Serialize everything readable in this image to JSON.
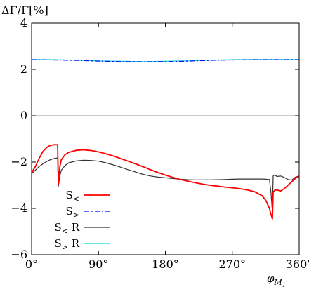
{
  "chart_data": {
    "type": "line",
    "ylabel": "ΔΓ/Γ[%]",
    "xlabel": "φ_{M1}",
    "xlabel_main": "φ",
    "xlabel_sub": "M",
    "xlabel_subsub": "1",
    "xlim": [
      0,
      360
    ],
    "ylim": [
      -6,
      4
    ],
    "x_ticks": [
      0,
      90,
      180,
      270,
      360
    ],
    "x_tick_labels": [
      "0°",
      "90°",
      "180°",
      "270°",
      "360°"
    ],
    "y_ticks": [
      -6,
      -4,
      -2,
      0,
      2,
      4
    ],
    "y_tick_labels": [
      "−6",
      "−4",
      "−2",
      "0",
      "2",
      "4"
    ],
    "zero_line": 0,
    "legend_position": "lower-left",
    "series": [
      {
        "name": "S< ",
        "name_base": "S",
        "name_sub": "<",
        "color": "#ff0000",
        "dash": "solid",
        "x": [
          0,
          5,
          10,
          15,
          20,
          25,
          30,
          35,
          36,
          38,
          40,
          45,
          50,
          60,
          70,
          80,
          90,
          100,
          110,
          120,
          130,
          140,
          150,
          160,
          170,
          180,
          190,
          200,
          210,
          220,
          230,
          240,
          250,
          260,
          270,
          280,
          290,
          300,
          310,
          315,
          320,
          322,
          324,
          325,
          327,
          330,
          335,
          340,
          345,
          350,
          355,
          360
        ],
        "y": [
          -2.45,
          -2.2,
          -1.85,
          -1.55,
          -1.38,
          -1.28,
          -1.25,
          -1.25,
          -2.95,
          -2.2,
          -1.9,
          -1.68,
          -1.58,
          -1.49,
          -1.47,
          -1.5,
          -1.56,
          -1.64,
          -1.74,
          -1.85,
          -1.96,
          -2.08,
          -2.2,
          -2.33,
          -2.45,
          -2.56,
          -2.66,
          -2.75,
          -2.82,
          -2.89,
          -2.95,
          -3.0,
          -3.04,
          -3.08,
          -3.11,
          -3.15,
          -3.2,
          -3.28,
          -3.45,
          -3.65,
          -4.0,
          -4.25,
          -4.45,
          -3.3,
          -3.22,
          -3.2,
          -3.25,
          -3.15,
          -3.0,
          -2.85,
          -2.7,
          -2.6
        ]
      },
      {
        "name": "S> ",
        "name_base": "S",
        "name_sub": ">",
        "color": "#0000ff",
        "dash": "dashdot",
        "x": [
          0,
          30,
          60,
          90,
          120,
          150,
          180,
          210,
          240,
          270,
          300,
          330,
          360
        ],
        "y": [
          2.42,
          2.41,
          2.39,
          2.36,
          2.34,
          2.33,
          2.34,
          2.36,
          2.39,
          2.41,
          2.42,
          2.42,
          2.42
        ]
      },
      {
        "name": "S< R",
        "name_base": "S",
        "name_sub": "<",
        "name_suffix": " R",
        "color": "#333333",
        "dash": "solid",
        "x": [
          0,
          5,
          10,
          15,
          20,
          25,
          30,
          35,
          36,
          38,
          40,
          45,
          50,
          60,
          70,
          80,
          90,
          100,
          110,
          120,
          130,
          140,
          150,
          160,
          170,
          180,
          190,
          200,
          210,
          220,
          230,
          240,
          250,
          260,
          270,
          280,
          290,
          300,
          310,
          315,
          320,
          322,
          324,
          325,
          327,
          330,
          335,
          340,
          345,
          350,
          355,
          360
        ],
        "y": [
          -2.5,
          -2.35,
          -2.2,
          -2.08,
          -1.98,
          -1.9,
          -1.85,
          -1.82,
          -3.05,
          -2.6,
          -2.35,
          -2.15,
          -2.03,
          -1.95,
          -1.92,
          -1.93,
          -1.96,
          -2.03,
          -2.12,
          -2.22,
          -2.33,
          -2.43,
          -2.53,
          -2.6,
          -2.65,
          -2.68,
          -2.71,
          -2.74,
          -2.76,
          -2.77,
          -2.77,
          -2.77,
          -2.76,
          -2.75,
          -2.74,
          -2.73,
          -2.73,
          -2.73,
          -2.73,
          -2.74,
          -2.75,
          -3.3,
          -4.15,
          -2.6,
          -2.55,
          -2.62,
          -2.6,
          -2.66,
          -2.75,
          -2.78,
          -2.65,
          -2.6
        ]
      },
      {
        "name": "S> R",
        "name_base": "S",
        "name_sub": ">",
        "name_suffix": " R",
        "color": "#00d7d7",
        "dash": "solid",
        "x": [
          0,
          30,
          60,
          90,
          120,
          150,
          180,
          210,
          240,
          270,
          300,
          330,
          360
        ],
        "y": [
          2.43,
          2.42,
          2.4,
          2.37,
          2.35,
          2.34,
          2.35,
          2.37,
          2.4,
          2.42,
          2.43,
          2.43,
          2.43
        ]
      }
    ]
  }
}
